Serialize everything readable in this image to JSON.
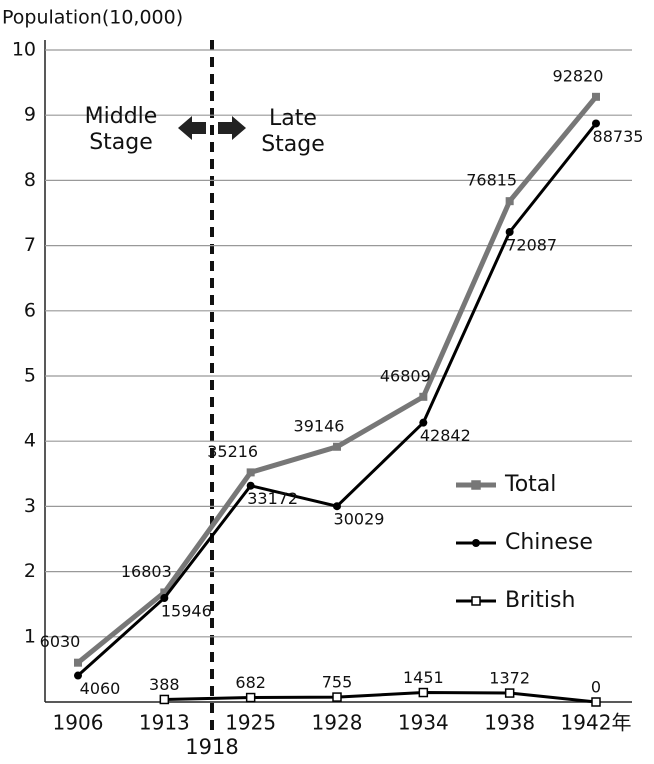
{
  "chart_data": {
    "type": "line",
    "y_axis_label": "Population(10,000)",
    "categories": [
      "1906",
      "1913",
      "1925",
      "1928",
      "1934",
      "1938",
      "1942年"
    ],
    "divider": {
      "label": "1918",
      "left_annotation": "Middle Stage",
      "right_annotation": "Late Stage"
    },
    "ylim": [
      0,
      10
    ],
    "yticks": [
      1,
      2,
      3,
      4,
      5,
      6,
      7,
      8,
      9,
      10
    ],
    "grid": true,
    "series": [
      {
        "name": "Total",
        "color": "#777777",
        "marker": "square",
        "values": [
          0.603,
          1.6803,
          3.5216,
          3.9146,
          4.6809,
          7.6815,
          9.282
        ],
        "value_labels": [
          "6030",
          "16803",
          "35216",
          "39146",
          "46809",
          "76815",
          "92820"
        ]
      },
      {
        "name": "Chinese",
        "color": "#000000",
        "marker": "circle",
        "values": [
          0.406,
          1.5946,
          3.3172,
          3.0029,
          4.2842,
          7.2087,
          8.8735
        ],
        "value_labels": [
          "4060",
          "15946",
          "33172",
          "30029",
          "42842",
          "72087",
          "88735"
        ]
      },
      {
        "name": "British",
        "color": "#000000",
        "marker": "open-square",
        "values": [
          null,
          0.0388,
          0.0682,
          0.0755,
          0.1451,
          0.1372,
          0
        ],
        "value_labels": [
          null,
          "388",
          "682",
          "755",
          "1451",
          "1372",
          "0"
        ]
      }
    ]
  }
}
